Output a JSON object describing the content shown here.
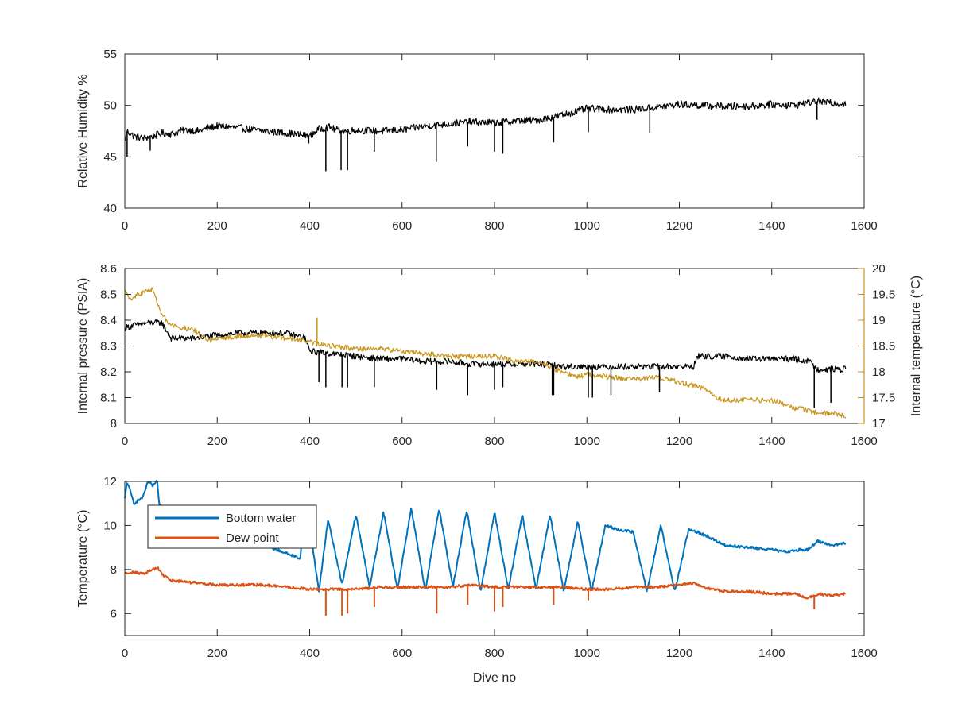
{
  "chart_data": [
    {
      "type": "line",
      "title": "",
      "xlabel": "",
      "ylabel": "Relative Humidity %",
      "xlim": [
        0,
        1600
      ],
      "ylim": [
        40,
        55
      ],
      "xticks": [
        "0",
        "200",
        "400",
        "600",
        "800",
        "1000",
        "1200",
        "1400",
        "1600"
      ],
      "yticks": [
        "40",
        "45",
        "50",
        "55"
      ],
      "series": [
        {
          "color": "#000000",
          "x": [
            0,
            5,
            20,
            40,
            60,
            80,
            100,
            120,
            140,
            160,
            180,
            200,
            250,
            300,
            350,
            400,
            420,
            440,
            460,
            480,
            500,
            550,
            600,
            650,
            700,
            750,
            800,
            850,
            900,
            950,
            1000,
            1050,
            1100,
            1150,
            1200,
            1250,
            1300,
            1350,
            1400,
            1450,
            1480,
            1500,
            1530,
            1560
          ],
          "y": [
            46.5,
            47.5,
            47.0,
            46.8,
            47.0,
            47.3,
            47.2,
            47.5,
            47.6,
            47.5,
            47.8,
            48.0,
            47.8,
            47.5,
            47.3,
            47.0,
            47.7,
            47.9,
            47.6,
            47.5,
            47.6,
            47.5,
            47.6,
            48.0,
            48.2,
            48.4,
            48.3,
            48.5,
            48.6,
            49.1,
            49.7,
            49.6,
            49.6,
            49.8,
            50.1,
            50.0,
            49.9,
            49.9,
            50.1,
            50.0,
            50.3,
            50.4,
            50.2,
            50.2
          ]
        }
      ],
      "dips": [
        {
          "x": 5,
          "y": 45.0
        },
        {
          "x": 55,
          "y": 45.6
        },
        {
          "x": 398,
          "y": 46.3
        },
        {
          "x": 435,
          "y": 43.6
        },
        {
          "x": 468,
          "y": 43.7
        },
        {
          "x": 482,
          "y": 43.7
        },
        {
          "x": 540,
          "y": 45.5
        },
        {
          "x": 674,
          "y": 44.5
        },
        {
          "x": 742,
          "y": 46.0
        },
        {
          "x": 800,
          "y": 45.5
        },
        {
          "x": 818,
          "y": 45.3
        },
        {
          "x": 928,
          "y": 46.4
        },
        {
          "x": 1003,
          "y": 47.4
        },
        {
          "x": 1136,
          "y": 47.3
        },
        {
          "x": 1498,
          "y": 48.6
        }
      ]
    },
    {
      "type": "line",
      "title": "",
      "xlabel": "",
      "ylabel": "Internal pressure (PSIA)",
      "y2label": "Internal temperature (°C)",
      "xlim": [
        0,
        1600
      ],
      "ylim": [
        8,
        8.6
      ],
      "y2lim": [
        17,
        20
      ],
      "xticks": [
        "0",
        "200",
        "400",
        "600",
        "800",
        "1000",
        "1200",
        "1400",
        "1600"
      ],
      "yticks": [
        "8",
        "8.1",
        "8.2",
        "8.3",
        "8.4",
        "8.5",
        "8.6"
      ],
      "y2ticks": [
        "17",
        "17.5",
        "18",
        "18.5",
        "19",
        "19.5",
        "20"
      ],
      "series": [
        {
          "axis": "left",
          "color": "#000000",
          "x": [
            0,
            20,
            50,
            80,
            100,
            150,
            190,
            250,
            300,
            350,
            390,
            400,
            450,
            500,
            550,
            600,
            650,
            700,
            750,
            800,
            850,
            900,
            950,
            1000,
            1050,
            1100,
            1150,
            1200,
            1230,
            1240,
            1300,
            1350,
            1400,
            1450,
            1480,
            1500,
            1530,
            1560
          ],
          "y": [
            8.37,
            8.38,
            8.39,
            8.39,
            8.33,
            8.33,
            8.34,
            8.35,
            8.35,
            8.35,
            8.33,
            8.28,
            8.27,
            8.26,
            8.25,
            8.25,
            8.24,
            8.24,
            8.23,
            8.23,
            8.23,
            8.23,
            8.22,
            8.22,
            8.22,
            8.22,
            8.22,
            8.22,
            8.22,
            8.26,
            8.26,
            8.25,
            8.25,
            8.25,
            8.24,
            8.21,
            8.21,
            8.21
          ]
        },
        {
          "axis": "right",
          "color": "#c8961e",
          "x": [
            0,
            10,
            30,
            60,
            72,
            80,
            100,
            150,
            180,
            250,
            300,
            350,
            390,
            410,
            450,
            500,
            550,
            600,
            650,
            700,
            750,
            800,
            850,
            900,
            930,
            980,
            1000,
            1050,
            1100,
            1150,
            1200,
            1250,
            1280,
            1300,
            1350,
            1400,
            1450,
            1480,
            1500,
            1530,
            1560
          ],
          "y": [
            19.6,
            19.4,
            19.5,
            19.6,
            19.3,
            19.1,
            18.9,
            18.8,
            18.6,
            18.7,
            18.7,
            18.65,
            18.6,
            18.55,
            18.5,
            18.45,
            18.45,
            18.4,
            18.35,
            18.3,
            18.3,
            18.3,
            18.2,
            18.2,
            18.05,
            17.9,
            17.95,
            17.9,
            17.85,
            17.9,
            17.8,
            17.7,
            17.5,
            17.45,
            17.45,
            17.45,
            17.3,
            17.25,
            17.2,
            17.2,
            17.15
          ]
        }
      ],
      "dips": [
        {
          "x": 420,
          "y": 8.16
        },
        {
          "x": 435,
          "y": 8.14
        },
        {
          "x": 470,
          "y": 8.14
        },
        {
          "x": 482,
          "y": 8.14
        },
        {
          "x": 540,
          "y": 8.14
        },
        {
          "x": 675,
          "y": 8.13
        },
        {
          "x": 742,
          "y": 8.11
        },
        {
          "x": 800,
          "y": 8.13
        },
        {
          "x": 818,
          "y": 8.14
        },
        {
          "x": 925,
          "y": 8.11
        },
        {
          "x": 928,
          "y": 8.11
        },
        {
          "x": 1003,
          "y": 8.1
        },
        {
          "x": 1012,
          "y": 8.1
        },
        {
          "x": 1052,
          "y": 8.11
        },
        {
          "x": 1157,
          "y": 8.12
        },
        {
          "x": 1492,
          "y": 8.06
        },
        {
          "x": 1528,
          "y": 8.08
        }
      ],
      "temp_spikes": [
        {
          "x": 416,
          "y": 19.05
        }
      ]
    },
    {
      "type": "line",
      "title": "",
      "xlabel": "Dive no",
      "ylabel": "Temperature (°C)",
      "xlim": [
        0,
        1600
      ],
      "ylim": [
        5,
        12
      ],
      "xticks": [
        "0",
        "200",
        "400",
        "600",
        "800",
        "1000",
        "1200",
        "1400",
        "1600"
      ],
      "yticks": [
        "6",
        "8",
        "10",
        "12"
      ],
      "legend": {
        "position": "top-left",
        "entries": [
          "Bottom water",
          "Dew point"
        ]
      },
      "series": [
        {
          "name": "Bottom water",
          "color": "#0072bd",
          "x": [
            0,
            5,
            20,
            40,
            50,
            60,
            70,
            75,
            380,
            385,
            400,
            420,
            440,
            470,
            500,
            530,
            560,
            590,
            620,
            650,
            680,
            710,
            740,
            770,
            800,
            830,
            860,
            890,
            920,
            950,
            980,
            1010,
            1040,
            1070,
            1100,
            1130,
            1160,
            1190,
            1220,
            1240,
            1260,
            1300,
            1350,
            1400,
            1430,
            1460,
            1480,
            1500,
            1530,
            1560
          ],
          "y": [
            11.2,
            12.0,
            11.0,
            11.3,
            12.0,
            11.8,
            12.0,
            10.9,
            8.5,
            10.2,
            10.0,
            7.0,
            10.3,
            7.3,
            10.5,
            7.2,
            10.6,
            7.1,
            10.8,
            7.0,
            10.8,
            7.2,
            10.7,
            7.0,
            10.6,
            7.1,
            10.5,
            7.1,
            10.5,
            7.0,
            10.2,
            7.0,
            10.0,
            9.8,
            9.7,
            7.0,
            10.0,
            7.0,
            9.8,
            9.7,
            9.5,
            9.1,
            9.0,
            8.9,
            8.8,
            8.9,
            8.9,
            9.3,
            9.1,
            9.2
          ]
        },
        {
          "name": "Dew point",
          "color": "#d95319",
          "x": [
            0,
            20,
            40,
            60,
            70,
            80,
            100,
            150,
            200,
            250,
            300,
            350,
            400,
            450,
            500,
            550,
            600,
            650,
            700,
            750,
            800,
            850,
            900,
            950,
            1000,
            1050,
            1100,
            1150,
            1200,
            1230,
            1250,
            1300,
            1350,
            1400,
            1450,
            1480,
            1500,
            1530,
            1560
          ],
          "y": [
            7.8,
            7.9,
            7.8,
            8.0,
            8.1,
            7.8,
            7.5,
            7.4,
            7.3,
            7.3,
            7.3,
            7.2,
            7.1,
            7.1,
            7.1,
            7.2,
            7.2,
            7.2,
            7.2,
            7.3,
            7.2,
            7.2,
            7.2,
            7.2,
            7.1,
            7.1,
            7.2,
            7.2,
            7.3,
            7.4,
            7.2,
            7.0,
            7.0,
            6.9,
            6.9,
            6.7,
            6.9,
            6.8,
            6.9
          ]
        }
      ],
      "dips": [
        {
          "x": 435,
          "y": 5.9
        },
        {
          "x": 470,
          "y": 5.9
        },
        {
          "x": 482,
          "y": 6.0
        },
        {
          "x": 540,
          "y": 6.3
        },
        {
          "x": 675,
          "y": 6.0
        },
        {
          "x": 742,
          "y": 6.4
        },
        {
          "x": 800,
          "y": 6.1
        },
        {
          "x": 818,
          "y": 6.3
        },
        {
          "x": 928,
          "y": 6.4
        },
        {
          "x": 1003,
          "y": 6.6
        },
        {
          "x": 1492,
          "y": 6.2
        }
      ]
    }
  ]
}
